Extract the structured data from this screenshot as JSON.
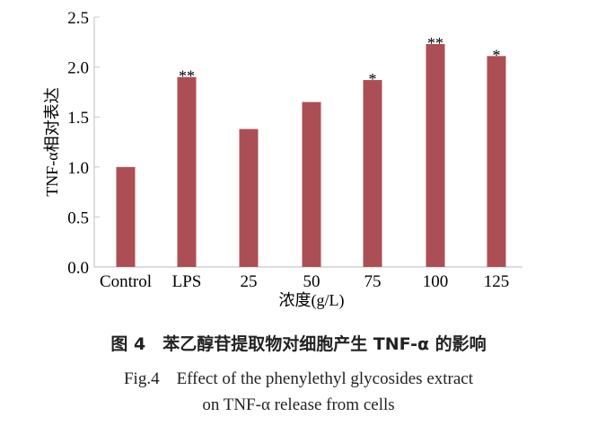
{
  "chart_data": {
    "type": "bar",
    "categories": [
      "Control",
      "LPS",
      "25",
      "50",
      "75",
      "100",
      "125"
    ],
    "values": [
      1.0,
      1.9,
      1.38,
      1.65,
      1.87,
      2.23,
      2.11
    ],
    "annotations": [
      "",
      "**",
      "",
      "",
      "*",
      "**",
      "*"
    ],
    "xlabel": "浓度(g/L)",
    "ylabel": "TNF-α相对表达",
    "ylim": [
      0,
      2.5
    ],
    "yticks": [
      "0.0",
      "0.5",
      "1.0",
      "1.5",
      "2.0",
      "2.5"
    ],
    "grid": false,
    "bar_color": "#ab4f55"
  },
  "caption": {
    "cn": "图 4　苯乙醇苷提取物对细胞产生 TNF-α 的影响",
    "en_line1": "Fig.4　Effect of the phenylethyl glycosides extract",
    "en_line2": "on TNF-α release from cells"
  }
}
